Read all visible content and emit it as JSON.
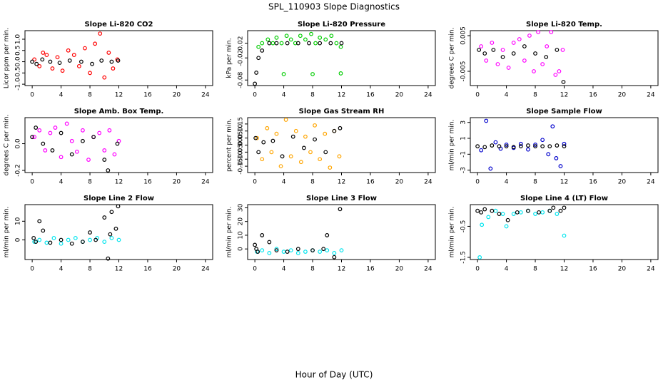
{
  "title": "SPL_110903  Slope Diagnostics",
  "xlabel": "Hour of Day (UTC)",
  "chart_data": [
    {
      "type": "scatter",
      "title": "Slope Li-820 CO2",
      "ylabel": "Licor ppm per min.",
      "xlim": [
        -1,
        25
      ],
      "xticks": [
        0,
        4,
        8,
        12,
        16,
        20,
        24
      ],
      "ylim": [
        -1.06,
        1.38
      ],
      "yticks": [
        {
          "value": -1,
          "label": "-1.0"
        },
        {
          "value": -0.5,
          "label": "-0.5"
        },
        {
          "value": 0,
          "label": "0.0"
        },
        {
          "value": 0.5,
          "label": "0.5"
        },
        {
          "value": 1,
          "label": "1.0"
        }
      ],
      "series": [
        {
          "color": "#ff0000",
          "x": [
            0.3,
            1,
            1.5,
            2,
            2.8,
            3.5,
            4.2,
            5,
            5.8,
            6.5,
            7.3,
            8,
            8.7,
            9.4,
            10,
            10.6,
            11.2,
            11.8
          ],
          "values": [
            0.1,
            -0.2,
            0.4,
            0.3,
            -0.3,
            0.2,
            -0.4,
            0.5,
            0.3,
            -0.2,
            0.6,
            -0.5,
            0.8,
            1.25,
            -0.7,
            0.4,
            -0.3,
            0.1
          ]
        },
        {
          "color": "#000000",
          "x": [
            0,
            0.6,
            1.4,
            2.5,
            3.8,
            5.2,
            6.8,
            8.3,
            9.6,
            11,
            11.9
          ],
          "values": [
            0,
            -0.1,
            0.1,
            0,
            -0.05,
            0.05,
            0,
            -0.1,
            0.05,
            0,
            0.05
          ]
        }
      ]
    },
    {
      "type": "scatter",
      "title": "Slope Li-820 Pressure",
      "ylabel": "kPa per min.",
      "xlim": [
        -1,
        25
      ],
      "xticks": [
        0,
        4,
        8,
        12,
        16,
        20,
        24
      ],
      "ylim": [
        -0.095,
        0.054
      ],
      "yticks": [
        -0.08,
        -0.02,
        0.02
      ],
      "series": [
        {
          "color": "#00cc00",
          "x": [
            0.5,
            1,
            1.8,
            2.5,
            3,
            3.7,
            4.4,
            5,
            5.6,
            6.3,
            7,
            7.8,
            8.4,
            9,
            9.8,
            10.6,
            11.3,
            11.9,
            4,
            8,
            11.9
          ],
          "values": [
            0.01,
            0.02,
            0.03,
            0.02,
            0.035,
            0.02,
            0.04,
            0.03,
            0.02,
            0.04,
            0.03,
            0.045,
            0.02,
            0.035,
            0.03,
            0.04,
            0.02,
            0.01,
            -0.064,
            -0.064,
            -0.062
          ]
        },
        {
          "color": "#000000",
          "x": [
            0,
            0.2,
            0.5,
            1,
            2,
            3,
            4.5,
            6,
            7.5,
            9,
            10.5,
            12
          ],
          "values": [
            -0.09,
            -0.06,
            -0.02,
            0,
            0.02,
            0.02,
            0.02,
            0.02,
            0.02,
            0.02,
            0.02,
            0.02
          ]
        }
      ]
    },
    {
      "type": "scatter",
      "title": "Slope Li-820 Temp.",
      "ylabel": "degrees C per min.",
      "xlim": [
        -1,
        25
      ],
      "xticks": [
        0,
        4,
        8,
        12,
        16,
        20,
        24
      ],
      "ylim": [
        -0.009,
        0.0064
      ],
      "yticks": [
        -0.005,
        0.005
      ],
      "series": [
        {
          "color": "#ff00ff",
          "x": [
            0.5,
            1.2,
            2,
            2.8,
            3.5,
            4.3,
            5,
            5.8,
            6.5,
            7.2,
            7.8,
            8.4,
            9,
            9.6,
            10.2,
            10.8,
            11.3,
            11.8
          ],
          "values": [
            0.002,
            -0.002,
            0.003,
            -0.003,
            0.001,
            -0.004,
            0.003,
            0.004,
            -0.002,
            0.005,
            -0.005,
            0.006,
            -0.003,
            0.002,
            0.006,
            -0.006,
            -0.005,
            0.001
          ]
        },
        {
          "color": "#000000",
          "x": [
            0.2,
            1,
            2.2,
            3.5,
            5,
            6.5,
            8,
            9.5,
            11,
            11.9
          ],
          "values": [
            0.001,
            0,
            0.001,
            -0.001,
            0,
            0.002,
            0,
            -0.001,
            0.001,
            -0.008
          ]
        }
      ]
    },
    {
      "type": "scatter",
      "title": "Slope Amb. Box Temp.",
      "ylabel": "degrees C per min.",
      "xlim": [
        -1,
        25
      ],
      "xticks": [
        0,
        4,
        8,
        12,
        16,
        20,
        24
      ],
      "ylim": [
        -0.216,
        0.195
      ],
      "yticks": [
        -0.2,
        {
          "value": 0,
          "label": "0.0"
        }
      ],
      "series": [
        {
          "color": "#ff00ff",
          "x": [
            0.3,
            1,
            1.8,
            2.5,
            3.2,
            4,
            4.8,
            5.5,
            6.2,
            7,
            7.8,
            8.5,
            9.3,
            10,
            10.7,
            11.4,
            12
          ],
          "values": [
            0.05,
            0.1,
            -0.05,
            0.08,
            0.12,
            -0.1,
            0.15,
            0.02,
            -0.06,
            0.1,
            -0.12,
            0.05,
            0.08,
            -0.05,
            0.1,
            -0.08,
            0.02
          ]
        },
        {
          "color": "#000000",
          "x": [
            0,
            0.5,
            1.5,
            2.8,
            4,
            5.5,
            7,
            8.5,
            10,
            10.5,
            11.8
          ],
          "values": [
            0.05,
            0.12,
            0,
            -0.05,
            0.08,
            -0.08,
            0.02,
            0.05,
            -0.12,
            -0.2,
            0
          ]
        }
      ]
    },
    {
      "type": "scatter",
      "title": "Slope Gas Stream RH",
      "ylabel": "percent per min.",
      "xlim": [
        -1,
        25
      ],
      "xticks": [
        0,
        4,
        8,
        12,
        16,
        20,
        24
      ],
      "ylim": [
        -0.195,
        0.195
      ],
      "yticks": [
        -0.15,
        {
          "value": -0.1,
          "label": "-0.10"
        },
        -0.05,
        {
          "value": 0,
          "label": "0.00"
        },
        0.05,
        {
          "value": 0.1,
          "label": "0.10"
        },
        0.15
      ],
      "series": [
        {
          "color": "#ffa500",
          "x": [
            0.3,
            1,
            1.7,
            2.3,
            3,
            3.6,
            4.3,
            5,
            5.7,
            6.4,
            7,
            7.7,
            8.3,
            9,
            9.7,
            10.4,
            11,
            11.7
          ],
          "values": [
            0.05,
            -0.1,
            0.12,
            -0.05,
            0.08,
            -0.15,
            0.18,
            -0.08,
            0.1,
            -0.12,
            0.06,
            -0.05,
            0.14,
            -0.1,
            0.08,
            -0.16,
            0.1,
            -0.08
          ]
        },
        {
          "color": "#000000",
          "x": [
            0.1,
            0.5,
            1.2,
            2.5,
            3.8,
            5.3,
            6.8,
            8.3,
            9.8,
            11,
            11.8
          ],
          "values": [
            0.05,
            -0.05,
            0.02,
            0.03,
            -0.08,
            0.06,
            -0.02,
            0.04,
            -0.05,
            0.1,
            0.12
          ]
        }
      ]
    },
    {
      "type": "scatter",
      "title": "Slope Sample Flow",
      "ylabel": "ml/min per min.",
      "xlim": [
        -1,
        25
      ],
      "xticks": [
        0,
        4,
        8,
        12,
        16,
        20,
        24
      ],
      "ylim": [
        -3.3,
        3.6
      ],
      "yticks": [
        -3,
        -1,
        1,
        3
      ],
      "series": [
        {
          "color": "#0000cc",
          "x": [
            0.5,
            1.2,
            1.8,
            2.5,
            3.2,
            4,
            5,
            6,
            7,
            8,
            9,
            9.8,
            10.4,
            10.9,
            11.5,
            12
          ],
          "values": [
            -0.5,
            3.2,
            -2.8,
            0.5,
            -0.3,
            0.2,
            -0.2,
            0.3,
            -0.4,
            0.2,
            0.8,
            -1,
            2.5,
            -1.5,
            -2.5,
            0.3
          ]
        },
        {
          "color": "#000000",
          "x": [
            0,
            1,
            2,
            3,
            4,
            5,
            6,
            7,
            8,
            9,
            10,
            11,
            12
          ],
          "values": [
            0,
            -0.1,
            0.1,
            0,
            0,
            -0.1,
            0,
            0.1,
            0,
            0,
            0,
            0.1,
            0
          ]
        }
      ]
    },
    {
      "type": "scatter",
      "title": "Slope Line 2 Flow",
      "ylabel": "ml/min per min.",
      "xlim": [
        -1,
        25
      ],
      "xticks": [
        0,
        4,
        8,
        12,
        16,
        20,
        24
      ],
      "ylim": [
        -10.5,
        18.9
      ],
      "yticks": [
        0,
        10
      ],
      "series": [
        {
          "color": "#00e5ee",
          "x": [
            0.3,
            1,
            2,
            3,
            4,
            5,
            6,
            7,
            8,
            9,
            10,
            11,
            12
          ],
          "values": [
            -1,
            0,
            -1.5,
            1,
            -2,
            0,
            1,
            -1,
            0,
            1,
            -1,
            1,
            0
          ]
        },
        {
          "color": "#000000",
          "x": [
            0.2,
            0.5,
            1,
            1.5,
            2.5,
            4,
            5.5,
            7,
            8,
            8.8,
            10,
            10.5,
            11,
            11.6,
            11.9,
            10.8
          ],
          "values": [
            1,
            -1,
            10,
            5,
            -1.5,
            0,
            -2,
            -1,
            4,
            0,
            12,
            -10,
            15,
            6,
            18,
            3
          ]
        }
      ]
    },
    {
      "type": "scatter",
      "title": "Slope Line 3 Flow",
      "ylabel": "ml/min per min.",
      "xlim": [
        -1,
        25
      ],
      "xticks": [
        0,
        4,
        8,
        12,
        16,
        20,
        24
      ],
      "ylim": [
        -7.7,
        32.3
      ],
      "yticks": [
        0,
        10,
        20,
        30
      ],
      "series": [
        {
          "color": "#00e5ee",
          "x": [
            0.3,
            1,
            2,
            3,
            4,
            5,
            6,
            7,
            8,
            9,
            10,
            11,
            12
          ],
          "values": [
            -2,
            -1,
            -3,
            0,
            -2,
            -1,
            -3,
            -2,
            -1,
            -2,
            -1,
            -3,
            -1
          ]
        },
        {
          "color": "#000000",
          "x": [
            0,
            0.2,
            0.4,
            1,
            2,
            3,
            4.5,
            6,
            8,
            9.5,
            10,
            11,
            11.8
          ],
          "values": [
            3,
            0,
            -2,
            10,
            5,
            -1,
            -2,
            0,
            -1,
            0,
            10,
            -6,
            29
          ]
        }
      ]
    },
    {
      "type": "scatter",
      "title": "Slope Line 4 (LT) Flow",
      "ylabel": "ml/min per min.",
      "xlim": [
        -1,
        25
      ],
      "xticks": [
        0,
        4,
        8,
        12,
        16,
        20,
        24
      ],
      "ylim": [
        -1.57,
        0.2
      ],
      "yticks": [
        -1.5,
        -0.5
      ],
      "series": [
        {
          "color": "#00e5ee",
          "x": [
            0.3,
            0.6,
            1.5,
            2.5,
            3.5,
            4,
            5,
            6,
            7,
            8,
            9,
            10,
            11,
            12
          ],
          "values": [
            -1.5,
            -0.45,
            -0.2,
            0,
            -0.1,
            -0.5,
            -0.1,
            -0.05,
            0,
            -0.1,
            -0.05,
            0,
            -0.1,
            -0.8
          ]
        },
        {
          "color": "#000000",
          "x": [
            0,
            0.5,
            1,
            2,
            3,
            4.2,
            5.5,
            7,
            8.5,
            10,
            10.5,
            11.5,
            12
          ],
          "values": [
            0,
            -0.05,
            0.05,
            0,
            -0.1,
            -0.3,
            -0.05,
            0,
            -0.05,
            0,
            0.1,
            0,
            0.1
          ]
        }
      ]
    }
  ]
}
